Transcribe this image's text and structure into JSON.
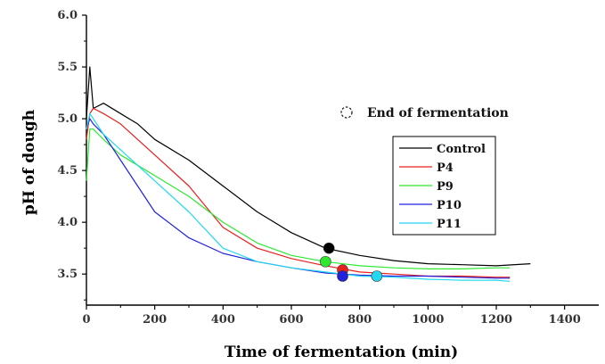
{
  "chart_data": {
    "type": "line",
    "title": "",
    "xlabel": "Time of fermentation (min)",
    "ylabel": "pH of dough",
    "xlim": [
      0,
      1500
    ],
    "ylim": [
      3.2,
      6.0
    ],
    "xticks": [
      0,
      200,
      400,
      600,
      800,
      1000,
      1200,
      1400
    ],
    "xtick_labels": [
      "0",
      "200",
      "400",
      "600",
      "800",
      "1000",
      "1200",
      "1400"
    ],
    "yticks": [
      3.5,
      4.0,
      4.5,
      5.0,
      5.5,
      6.0
    ],
    "ytick_labels": [
      "3.5",
      "4.0",
      "4.5",
      "5.0",
      "5.5",
      "6.0"
    ],
    "grid": false,
    "legend_position": "right",
    "annotation": {
      "marker": "open-dashed-circle",
      "label": "End of fermentation"
    },
    "series": [
      {
        "name": "Control",
        "color": "#000000",
        "x": [
          0,
          10,
          20,
          50,
          100,
          150,
          200,
          300,
          400,
          500,
          600,
          700,
          800,
          900,
          1000,
          1100,
          1200,
          1300
        ],
        "y": [
          5.0,
          5.5,
          5.1,
          5.15,
          5.05,
          4.95,
          4.8,
          4.6,
          4.35,
          4.1,
          3.9,
          3.75,
          3.68,
          3.63,
          3.6,
          3.59,
          3.58,
          3.6
        ],
        "end_point": {
          "x": 710,
          "y": 3.75
        }
      },
      {
        "name": "P4",
        "color": "#e8201e",
        "x": [
          0,
          10,
          20,
          50,
          100,
          150,
          200,
          300,
          400,
          500,
          600,
          700,
          800,
          900,
          1000,
          1100,
          1200,
          1240
        ],
        "y": [
          4.8,
          5.05,
          5.1,
          5.05,
          4.95,
          4.8,
          4.65,
          4.35,
          3.95,
          3.75,
          3.65,
          3.58,
          3.52,
          3.5,
          3.48,
          3.48,
          3.47,
          3.47
        ],
        "end_point": {
          "x": 750,
          "y": 3.54
        }
      },
      {
        "name": "P9",
        "color": "#2ee830",
        "x": [
          0,
          10,
          20,
          50,
          100,
          150,
          200,
          300,
          400,
          500,
          600,
          700,
          800,
          900,
          1000,
          1100,
          1200,
          1240
        ],
        "y": [
          4.4,
          4.9,
          4.9,
          4.8,
          4.65,
          4.55,
          4.45,
          4.25,
          4.0,
          3.8,
          3.68,
          3.62,
          3.58,
          3.56,
          3.55,
          3.55,
          3.56,
          3.56
        ],
        "end_point": {
          "x": 700,
          "y": 3.62
        }
      },
      {
        "name": "P10",
        "color": "#2222dd",
        "x": [
          0,
          10,
          20,
          50,
          100,
          150,
          200,
          300,
          400,
          500,
          600,
          700,
          800,
          900,
          1000,
          1100,
          1200,
          1240
        ],
        "y": [
          4.9,
          5.0,
          4.95,
          4.85,
          4.6,
          4.35,
          4.1,
          3.85,
          3.7,
          3.62,
          3.56,
          3.51,
          3.49,
          3.48,
          3.48,
          3.47,
          3.46,
          3.46
        ],
        "end_point": {
          "x": 750,
          "y": 3.48
        }
      },
      {
        "name": "P11",
        "color": "#22d8f0",
        "x": [
          0,
          10,
          20,
          50,
          100,
          150,
          200,
          300,
          400,
          500,
          600,
          700,
          800,
          900,
          1000,
          1100,
          1200,
          1240
        ],
        "y": [
          4.9,
          5.05,
          5.0,
          4.85,
          4.7,
          4.55,
          4.4,
          4.1,
          3.75,
          3.62,
          3.56,
          3.52,
          3.48,
          3.47,
          3.45,
          3.44,
          3.44,
          3.43
        ],
        "end_point": {
          "x": 850,
          "y": 3.48
        }
      }
    ]
  }
}
